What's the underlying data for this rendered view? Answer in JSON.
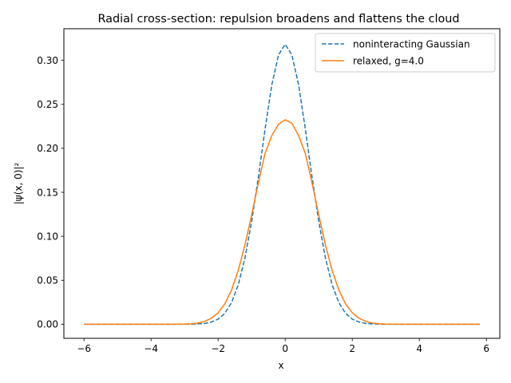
{
  "chart_data": {
    "type": "line",
    "title": "Radial cross-section: repulsion broadens and flattens the cloud",
    "xlabel": "x",
    "ylabel": "|ψ(x, 0)|²",
    "xlim": [
      -6.6,
      6.4
    ],
    "ylim": [
      -0.016,
      0.336
    ],
    "xticks": [
      -6,
      -4,
      -2,
      0,
      2,
      4,
      6
    ],
    "xtick_labels": [
      "−6",
      "−4",
      "−2",
      "0",
      "2",
      "4",
      "6"
    ],
    "yticks": [
      0.0,
      0.05,
      0.1,
      0.15,
      0.2,
      0.25,
      0.3
    ],
    "ytick_labels": [
      "0.00",
      "0.05",
      "0.10",
      "0.15",
      "0.20",
      "0.25",
      "0.30"
    ],
    "grid": false,
    "legend_position": "top-right",
    "series": [
      {
        "name": "noninteracting Gaussian",
        "color": "#1f77b4",
        "style": "dashed",
        "x": [
          -6.0,
          -5.8,
          -5.6,
          -5.4,
          -5.2,
          -5.0,
          -4.8,
          -4.6,
          -4.4,
          -4.2,
          -4.0,
          -3.8,
          -3.6,
          -3.4,
          -3.2,
          -3.0,
          -2.8,
          -2.6,
          -2.4,
          -2.2,
          -2.0,
          -1.8,
          -1.6,
          -1.4,
          -1.2,
          -1.0,
          -0.8,
          -0.6,
          -0.4,
          -0.2,
          0.0,
          0.2,
          0.4,
          0.6,
          0.8,
          1.0,
          1.2,
          1.4,
          1.6,
          1.8,
          2.0,
          2.2,
          2.4,
          2.6,
          2.8,
          3.0,
          3.2,
          3.4,
          3.6,
          3.8,
          4.0,
          4.2,
          4.4,
          4.6,
          4.8,
          5.0,
          5.2,
          5.4,
          5.6,
          5.8
        ],
        "y": [
          0.0,
          0.0,
          0.0,
          0.0,
          0.0,
          0.0,
          0.0,
          0.0,
          0.0,
          0.0,
          0.0,
          0.0,
          0.0,
          0.0,
          0.0,
          0.0,
          0.0001,
          0.0004,
          0.0009,
          0.0025,
          0.0058,
          0.0124,
          0.0246,
          0.0449,
          0.0753,
          0.1171,
          0.1674,
          0.222,
          0.2721,
          0.3062,
          0.3183,
          0.3062,
          0.2721,
          0.222,
          0.1674,
          0.1171,
          0.0753,
          0.0449,
          0.0246,
          0.0124,
          0.0058,
          0.0025,
          0.0009,
          0.0004,
          0.0001,
          0.0,
          0.0,
          0.0,
          0.0,
          0.0,
          0.0,
          0.0,
          0.0,
          0.0,
          0.0,
          0.0,
          0.0,
          0.0,
          0.0,
          0.0
        ]
      },
      {
        "name": "relaxed, g=4.0",
        "color": "#ff7f0e",
        "style": "solid",
        "x": [
          -6.0,
          -5.8,
          -5.6,
          -5.4,
          -5.2,
          -5.0,
          -4.8,
          -4.6,
          -4.4,
          -4.2,
          -4.0,
          -3.8,
          -3.6,
          -3.4,
          -3.2,
          -3.0,
          -2.8,
          -2.6,
          -2.4,
          -2.2,
          -2.0,
          -1.8,
          -1.6,
          -1.4,
          -1.2,
          -1.0,
          -0.8,
          -0.6,
          -0.4,
          -0.2,
          0.0,
          0.2,
          0.4,
          0.6,
          0.8,
          1.0,
          1.2,
          1.4,
          1.6,
          1.8,
          2.0,
          2.2,
          2.4,
          2.6,
          2.8,
          3.0,
          3.2,
          3.4,
          3.6,
          3.8,
          4.0,
          4.2,
          4.4,
          4.6,
          4.8,
          5.0,
          5.2,
          5.4,
          5.6,
          5.8
        ],
        "y": [
          0.0,
          0.0,
          0.0,
          0.0,
          0.0,
          0.0,
          0.0,
          0.0,
          0.0,
          0.0,
          0.0,
          0.0,
          0.0,
          0.0,
          0.0001,
          0.0002,
          0.0006,
          0.0014,
          0.0033,
          0.0069,
          0.0131,
          0.0232,
          0.0389,
          0.0612,
          0.0902,
          0.1244,
          0.1607,
          0.1943,
          0.2144,
          0.2275,
          0.2325,
          0.2285,
          0.2144,
          0.1943,
          0.1607,
          0.1244,
          0.0902,
          0.0612,
          0.0389,
          0.0232,
          0.0131,
          0.0069,
          0.0033,
          0.0014,
          0.0006,
          0.0002,
          0.0001,
          0.0,
          0.0,
          0.0,
          0.0,
          0.0,
          0.0,
          0.0,
          0.0,
          0.0,
          0.0,
          0.0,
          0.0,
          0.0
        ]
      }
    ]
  }
}
